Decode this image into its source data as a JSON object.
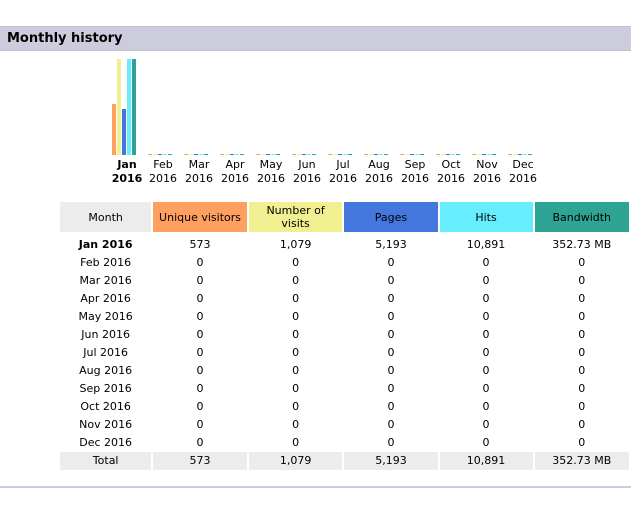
{
  "header": {
    "title": "Monthly history"
  },
  "colors": {
    "header_bg": "#ccccdd",
    "unique_visitors": "#ffa060",
    "number_of_visits": "#f0f090",
    "pages": "#4477dd",
    "hits": "#66eeff",
    "bandwidth": "#2ea495"
  },
  "chart": {
    "months": [
      {
        "month": "Jan",
        "year": "2016"
      },
      {
        "month": "Feb",
        "year": "2016"
      },
      {
        "month": "Mar",
        "year": "2016"
      },
      {
        "month": "Apr",
        "year": "2016"
      },
      {
        "month": "May",
        "year": "2016"
      },
      {
        "month": "Jun",
        "year": "2016"
      },
      {
        "month": "Jul",
        "year": "2016"
      },
      {
        "month": "Aug",
        "year": "2016"
      },
      {
        "month": "Sep",
        "year": "2016"
      },
      {
        "month": "Oct",
        "year": "2016"
      },
      {
        "month": "Nov",
        "year": "2016"
      },
      {
        "month": "Dec",
        "year": "2016"
      }
    ],
    "series_relative_height": [
      {
        "name": "Unique visitors",
        "jan": 0.53
      },
      {
        "name": "Number of visits",
        "jan": 1.0
      },
      {
        "name": "Pages",
        "jan": 0.48
      },
      {
        "name": "Hits",
        "jan": 1.0
      },
      {
        "name": "Bandwidth",
        "jan": 1.0
      }
    ]
  },
  "table": {
    "headers": {
      "month": "Month",
      "unique_visitors": "Unique visitors",
      "number_of_visits": "Number of visits",
      "pages": "Pages",
      "hits": "Hits",
      "bandwidth": "Bandwidth"
    },
    "rows": [
      {
        "month": "Jan 2016",
        "unique_visitors": "573",
        "number_of_visits": "1,079",
        "pages": "5,193",
        "hits": "10,891",
        "bandwidth": "352.73 MB"
      },
      {
        "month": "Feb 2016",
        "unique_visitors": "0",
        "number_of_visits": "0",
        "pages": "0",
        "hits": "0",
        "bandwidth": "0"
      },
      {
        "month": "Mar 2016",
        "unique_visitors": "0",
        "number_of_visits": "0",
        "pages": "0",
        "hits": "0",
        "bandwidth": "0"
      },
      {
        "month": "Apr 2016",
        "unique_visitors": "0",
        "number_of_visits": "0",
        "pages": "0",
        "hits": "0",
        "bandwidth": "0"
      },
      {
        "month": "May 2016",
        "unique_visitors": "0",
        "number_of_visits": "0",
        "pages": "0",
        "hits": "0",
        "bandwidth": "0"
      },
      {
        "month": "Jun 2016",
        "unique_visitors": "0",
        "number_of_visits": "0",
        "pages": "0",
        "hits": "0",
        "bandwidth": "0"
      },
      {
        "month": "Jul 2016",
        "unique_visitors": "0",
        "number_of_visits": "0",
        "pages": "0",
        "hits": "0",
        "bandwidth": "0"
      },
      {
        "month": "Aug 2016",
        "unique_visitors": "0",
        "number_of_visits": "0",
        "pages": "0",
        "hits": "0",
        "bandwidth": "0"
      },
      {
        "month": "Sep 2016",
        "unique_visitors": "0",
        "number_of_visits": "0",
        "pages": "0",
        "hits": "0",
        "bandwidth": "0"
      },
      {
        "month": "Oct 2016",
        "unique_visitors": "0",
        "number_of_visits": "0",
        "pages": "0",
        "hits": "0",
        "bandwidth": "0"
      },
      {
        "month": "Nov 2016",
        "unique_visitors": "0",
        "number_of_visits": "0",
        "pages": "0",
        "hits": "0",
        "bandwidth": "0"
      },
      {
        "month": "Dec 2016",
        "unique_visitors": "0",
        "number_of_visits": "0",
        "pages": "0",
        "hits": "0",
        "bandwidth": "0"
      }
    ],
    "total": {
      "month": "Total",
      "unique_visitors": "573",
      "number_of_visits": "1,079",
      "pages": "5,193",
      "hits": "10,891",
      "bandwidth": "352.73 MB"
    }
  }
}
